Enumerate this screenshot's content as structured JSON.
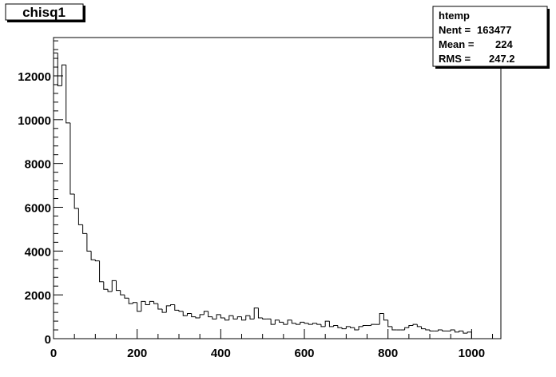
{
  "chart_data": {
    "type": "bar",
    "title": "chisq1",
    "xlabel": "",
    "ylabel": "",
    "xlim": [
      0,
      1070
    ],
    "ylim": [
      0,
      13750
    ],
    "bin_width": 10,
    "x_ticks": [
      0,
      200,
      400,
      600,
      800,
      1000
    ],
    "y_ticks": [
      0,
      2000,
      4000,
      6000,
      8000,
      10000,
      12000
    ],
    "grid": false,
    "legend": "none",
    "stats_box": {
      "name": "htemp",
      "rows": [
        {
          "label": "Nent =",
          "value": "163477"
        },
        {
          "label": "Mean =",
          "value": "224"
        },
        {
          "label": "RMS  =",
          "value": "247.2"
        }
      ]
    },
    "series": [
      {
        "x_start": 0,
        "values": [
          13050,
          11550,
          12500,
          9850,
          6600,
          5950,
          5200,
          4800,
          4000,
          3600,
          3550,
          2600,
          2250,
          2150,
          2650,
          2200,
          2000,
          1850,
          1600,
          1650,
          1250,
          1700,
          1550,
          1700,
          1600,
          1350,
          1200,
          1500,
          1550,
          1300,
          1250,
          1050,
          1150,
          1000,
          950,
          1100,
          1250,
          1000,
          900,
          1100,
          950,
          850,
          1050,
          900,
          1000,
          850,
          1050,
          900,
          1400,
          950,
          900,
          900,
          650,
          850,
          750,
          650,
          850,
          700,
          650,
          750,
          700,
          650,
          700,
          650,
          550,
          800,
          550,
          600,
          500,
          450,
          550,
          500,
          400,
          550,
          600,
          600,
          650,
          650,
          1150,
          850,
          550,
          400,
          400,
          400,
          500,
          600,
          650,
          550,
          450,
          400,
          350,
          350,
          400,
          350,
          350,
          400,
          300,
          350,
          250,
          300
        ]
      }
    ]
  }
}
